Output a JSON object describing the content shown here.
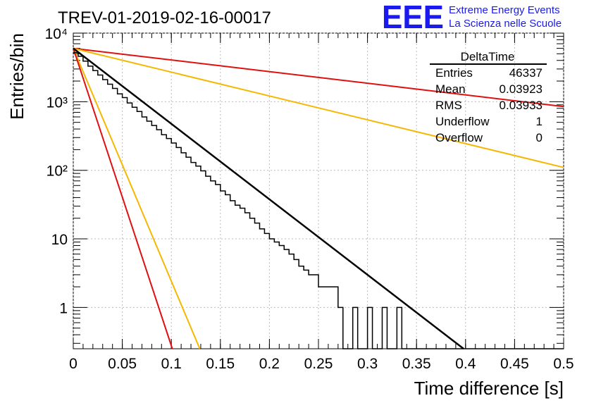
{
  "chart_data": {
    "type": "histogram",
    "title": "TREV-01-2019-02-16-00017",
    "xlabel": "Time difference [s]",
    "ylabel": "Entries/bin",
    "xlim": [
      0,
      0.5
    ],
    "ylim": [
      0.25,
      10000
    ],
    "yscale": "log",
    "grid": true,
    "x_ticks": [
      0,
      0.05,
      0.1,
      0.15,
      0.2,
      0.25,
      0.3,
      0.35,
      0.4,
      0.45,
      0.5
    ],
    "x_tick_labels": [
      "0",
      "0.05",
      "0.1",
      "0.15",
      "0.2",
      "0.25",
      "0.3",
      "0.35",
      "0.4",
      "0.45",
      "0.5"
    ],
    "y_ticks": [
      1,
      10,
      100,
      1000,
      10000
    ],
    "y_tick_labels": [
      "1",
      "10",
      "10²",
      "10³",
      "10⁴"
    ],
    "bin_width": 0.005,
    "histogram_values": [
      5200,
      4600,
      3900,
      3300,
      2850,
      2450,
      2100,
      1800,
      1560,
      1300,
      1150,
      960,
      830,
      720,
      600,
      520,
      450,
      390,
      330,
      290,
      250,
      215,
      180,
      155,
      130,
      115,
      98,
      82,
      70,
      62,
      50,
      44,
      36,
      31,
      28,
      24,
      20,
      17,
      14,
      12,
      10,
      9,
      8,
      7,
      6,
      5,
      4,
      3.5,
      3,
      3,
      2,
      2,
      2,
      2,
      1,
      0,
      0,
      1,
      0,
      0,
      1,
      0,
      0,
      1,
      0,
      0,
      1,
      0,
      0,
      0,
      0,
      0,
      0,
      0,
      0,
      0,
      0,
      0,
      0,
      0,
      0,
      0,
      0,
      0,
      0,
      0,
      0,
      0,
      0,
      0,
      0,
      0,
      0,
      0,
      0,
      0,
      0,
      0,
      0,
      0
    ],
    "fit_line": {
      "color": "#000000",
      "points": [
        [
          0,
          6000
        ],
        [
          0.398,
          0.25
        ]
      ]
    },
    "reference_lines": [
      {
        "color": "#e01010",
        "points": [
          [
            0,
            6000
          ],
          [
            0.5,
            850
          ]
        ]
      },
      {
        "color": "#f5b800",
        "points": [
          [
            0,
            6000
          ],
          [
            0.5,
            110
          ]
        ]
      },
      {
        "color": "#f5b800",
        "points": [
          [
            0,
            6000
          ],
          [
            0.129,
            0.25
          ]
        ]
      },
      {
        "color": "#e01010",
        "points": [
          [
            0,
            6000
          ],
          [
            0.101,
            0.25
          ]
        ]
      }
    ],
    "stats_box": {
      "title": "DeltaTime",
      "rows": [
        {
          "label": "Entries",
          "value": "46337"
        },
        {
          "label": "Mean",
          "value": "0.03923"
        },
        {
          "label": "RMS",
          "value": "0.03933"
        },
        {
          "label": "Underflow",
          "value": "1"
        },
        {
          "label": "Overflow",
          "value": "0"
        }
      ]
    }
  },
  "logo": {
    "mark": "EEE",
    "line1": "Extreme Energy Events",
    "line2": "La Scienza nelle Scuole",
    "color": "#1a1aee"
  }
}
